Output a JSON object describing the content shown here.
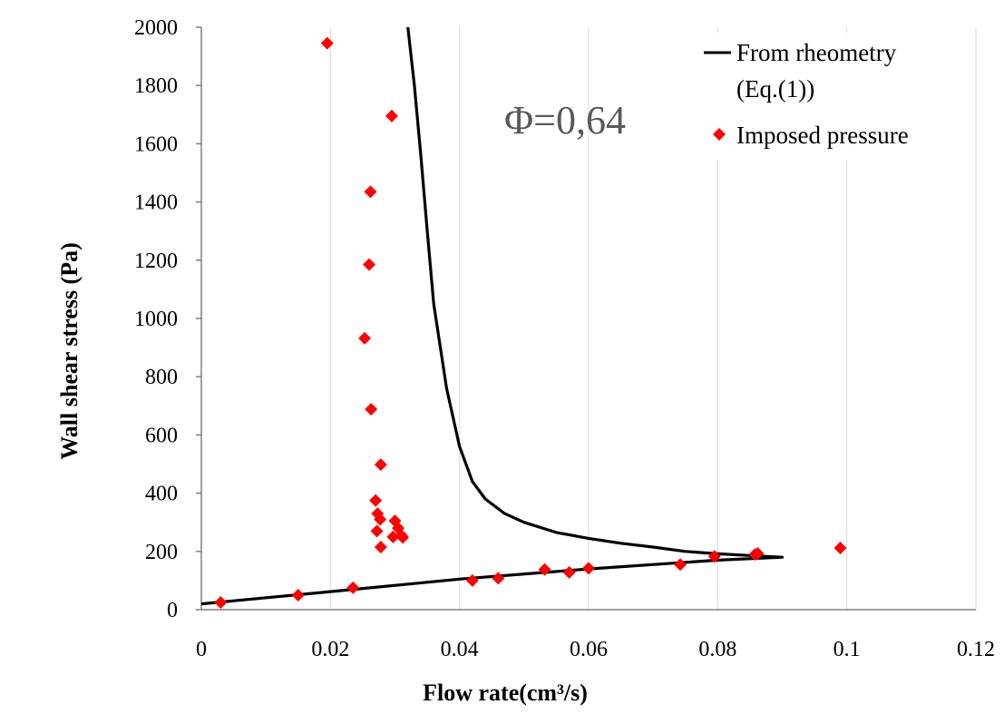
{
  "chart_data": {
    "type": "scatter",
    "xlabel": "Flow rate(cm³/s)",
    "ylabel": "Wall shear stress (Pa)",
    "xlim": [
      0,
      0.12
    ],
    "ylim": [
      0,
      2000
    ],
    "xticks": [
      "0",
      "0.02",
      "0.04",
      "0.06",
      "0.08",
      "0.1",
      "0.12"
    ],
    "yticks": [
      "0",
      "200",
      "400",
      "600",
      "800",
      "1000",
      "1200",
      "1400",
      "1600",
      "1800",
      "2000"
    ],
    "grid": "vertical",
    "legend_position": "top-right",
    "annotation": "Φ=0,64",
    "series": [
      {
        "name": "From rheometry (Eq.(1))",
        "type": "line",
        "color": "#000000",
        "points": [
          [
            0,
            20
          ],
          [
            0.02,
            62
          ],
          [
            0.04,
            105
          ],
          [
            0.06,
            140
          ],
          [
            0.08,
            170
          ],
          [
            0.09,
            180
          ],
          [
            0.085,
            186
          ],
          [
            0.08,
            192
          ],
          [
            0.075,
            200
          ],
          [
            0.07,
            215
          ],
          [
            0.065,
            228
          ],
          [
            0.06,
            245
          ],
          [
            0.055,
            265
          ],
          [
            0.05,
            300
          ],
          [
            0.047,
            330
          ],
          [
            0.044,
            380
          ],
          [
            0.042,
            440
          ],
          [
            0.04,
            560
          ],
          [
            0.038,
            760
          ],
          [
            0.036,
            1050
          ],
          [
            0.035,
            1300
          ],
          [
            0.034,
            1560
          ],
          [
            0.033,
            1800
          ],
          [
            0.032,
            2000
          ]
        ]
      },
      {
        "name": "Imposed pressure",
        "type": "scatter",
        "color": "#ff0000",
        "points": [
          [
            0.003,
            25
          ],
          [
            0.015,
            50
          ],
          [
            0.0235,
            75
          ],
          [
            0.0195,
            1945
          ],
          [
            0.0295,
            1695
          ],
          [
            0.0262,
            1435
          ],
          [
            0.026,
            1185
          ],
          [
            0.0253,
            932
          ],
          [
            0.0263,
            688
          ],
          [
            0.0278,
            498
          ],
          [
            0.027,
            375
          ],
          [
            0.0273,
            330
          ],
          [
            0.0277,
            310
          ],
          [
            0.0272,
            270
          ],
          [
            0.0278,
            215
          ],
          [
            0.03,
            305
          ],
          [
            0.0305,
            280
          ],
          [
            0.031,
            255
          ],
          [
            0.0297,
            250
          ],
          [
            0.0312,
            248
          ],
          [
            0.042,
            100
          ],
          [
            0.046,
            108
          ],
          [
            0.0532,
            138
          ],
          [
            0.057,
            128
          ],
          [
            0.06,
            142
          ],
          [
            0.0742,
            155
          ],
          [
            0.0795,
            183
          ],
          [
            0.0858,
            190
          ],
          [
            0.0862,
            193
          ],
          [
            0.099,
            212
          ]
        ]
      }
    ]
  }
}
